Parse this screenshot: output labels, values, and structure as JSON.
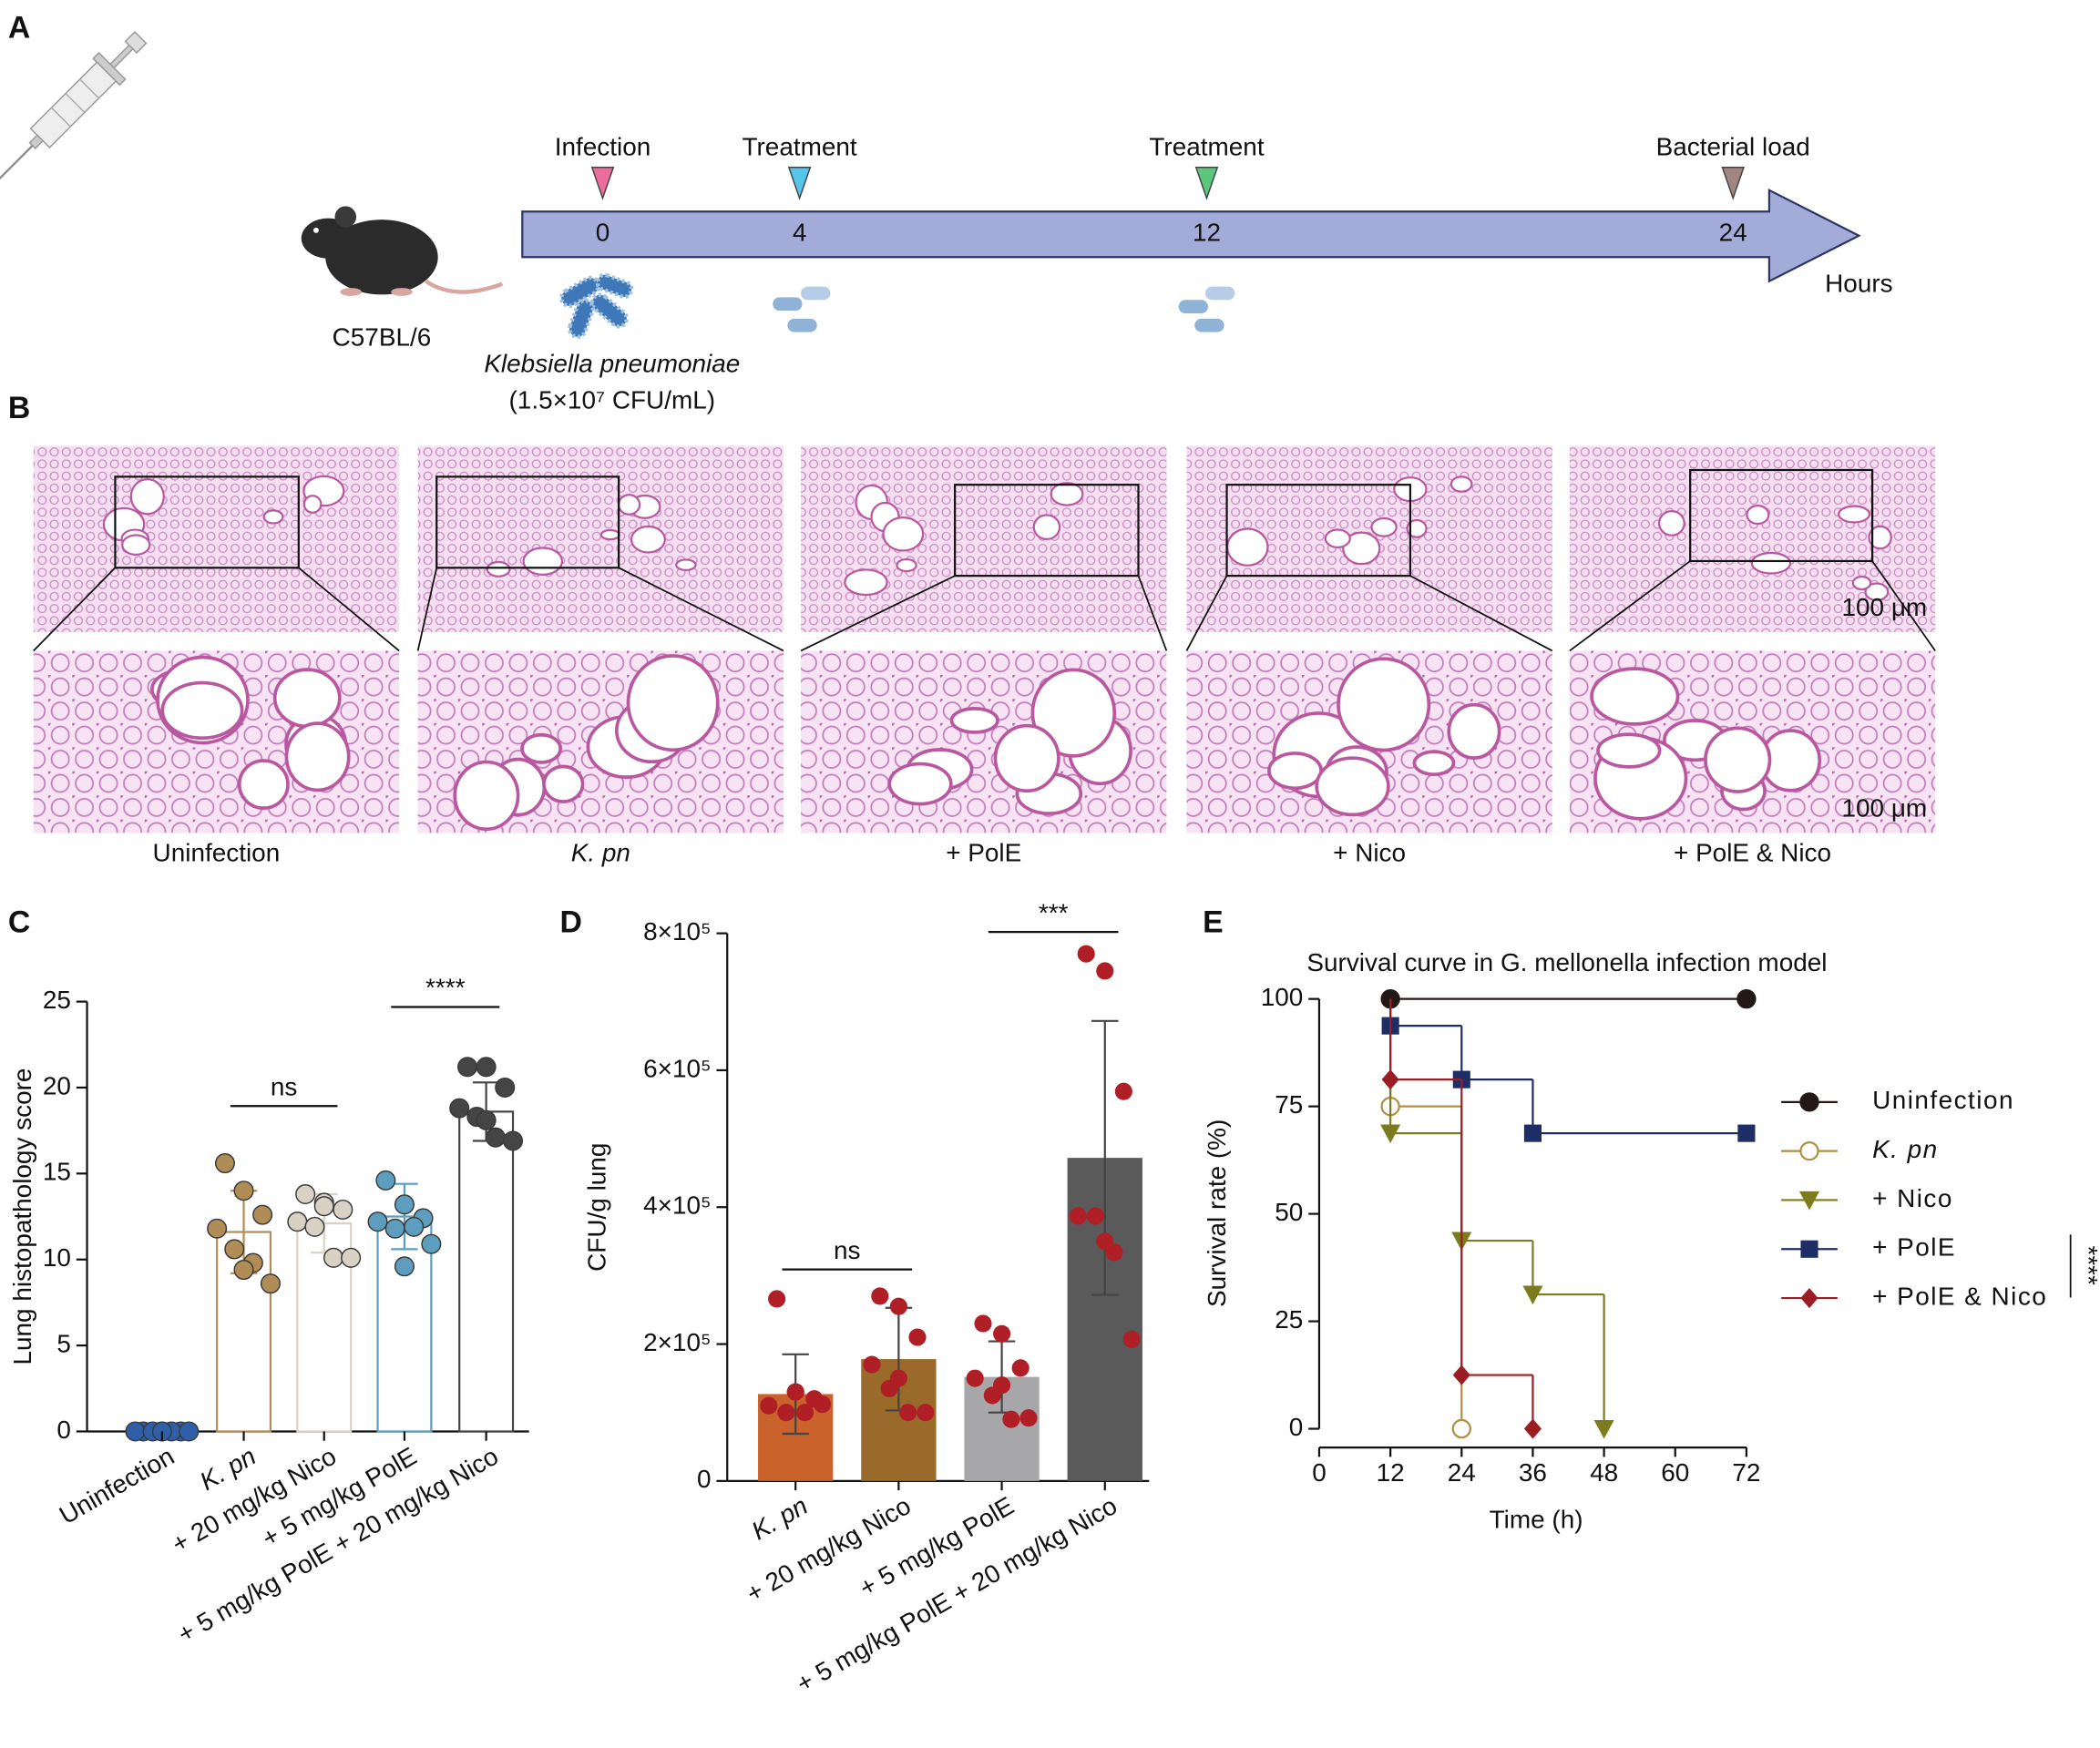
{
  "panel_a": {
    "label": "A",
    "strain": "C57BL/6",
    "organism": "Klebsiella pneumoniae",
    "dose": "(1.5×10⁷ CFU/mL)",
    "unit": "Hours",
    "events": [
      {
        "name": "Infection",
        "time": 0,
        "color": "#ec6c9c"
      },
      {
        "name": "Treatment",
        "time": 4,
        "color": "#56c5ec"
      },
      {
        "name": "Treatment",
        "time": 12,
        "color": "#5cc57e"
      },
      {
        "name": "Bacterial load",
        "time": 24,
        "color": "#a08580"
      }
    ]
  },
  "panel_b": {
    "label": "B",
    "groups": [
      "Uninfection",
      "K. pn",
      "+ PolE",
      "+ Nico",
      "+ PolE & Nico"
    ],
    "scale_bar": "100 μm"
  },
  "chart_data": [
    {
      "label": "C",
      "type": "bar",
      "bar_style": "outline",
      "ylabel": "Lung histopathology score",
      "categories": [
        "Uninfection",
        "K. pn",
        "+ 20 mg/kg Nico",
        "+ 5 mg/kg PolE",
        "+ 5 mg/kg PolE + 20 mg/kg Nico"
      ],
      "colors": [
        "#2f5fa8",
        "#b08d57",
        "#d9d1c4",
        "#5d9dbd",
        "#454545"
      ],
      "values": [
        0,
        11.6,
        12.1,
        12.5,
        18.6
      ],
      "errors": [
        0,
        2.4,
        1.7,
        1.9,
        1.7
      ],
      "points": [
        [
          0,
          0,
          0,
          0,
          0,
          0,
          0,
          0
        ],
        [
          15.6,
          14,
          12.6,
          11.8,
          10.6,
          9.8,
          8.6,
          9.4
        ],
        [
          13.8,
          13.3,
          12.9,
          12.2,
          11.9,
          10.1,
          10.1,
          13.1
        ],
        [
          14.6,
          13.2,
          12.4,
          12.2,
          11.8,
          11.9,
          10.9,
          9.6
        ],
        [
          21.2,
          21.2,
          20.0,
          18.8,
          18.3,
          17.1,
          16.9,
          18.1
        ]
      ],
      "ylim": [
        0,
        25
      ],
      "yticks": [
        0,
        5,
        10,
        15,
        20,
        25
      ],
      "annotations": [
        "ns",
        "****"
      ]
    },
    {
      "label": "D",
      "type": "bar",
      "bar_style": "filled",
      "ylabel": "CFU/g lung",
      "categories": [
        "K. pn",
        "+ 20 mg/kg Nico",
        "+ 5 mg/kg PolE",
        "+ 5 mg/kg PolE + 20 mg/kg Nico"
      ],
      "colors": [
        "#c9622b",
        "#9a6a2a",
        "#a7a7aa",
        "#5a5a5a"
      ],
      "point_color": "#b01e26",
      "values": [
        127000,
        178000,
        152000,
        472000
      ],
      "errors": [
        58000,
        75000,
        52000,
        200000
      ],
      "points": [
        [
          266000,
          130000,
          120000,
          110000,
          100000,
          100000,
          112000,
          130000
        ],
        [
          270000,
          255000,
          210000,
          170000,
          135000,
          100000,
          100000,
          150000
        ],
        [
          230000,
          215000,
          165000,
          150000,
          125000,
          90000,
          92000,
          140000
        ],
        [
          770000,
          745000,
          569000,
          387000,
          387000,
          334000,
          207000,
          350000
        ]
      ],
      "ylim": [
        0,
        800000
      ],
      "yticks": [
        0,
        {
          "value": 200000,
          "label": "2×10⁵"
        },
        {
          "value": 400000,
          "label": "4×10⁵"
        },
        {
          "value": 600000,
          "label": "6×10⁵"
        },
        {
          "value": 800000,
          "label": "8×10⁵"
        }
      ],
      "annotations": [
        "ns",
        "***"
      ]
    },
    {
      "label": "E",
      "type": "line",
      "title": "Survival curve in G. mellonella infection model",
      "xlabel": "Time (h)",
      "ylabel": "Survival rate (%)",
      "xlim": [
        0,
        72
      ],
      "xticks": [
        0,
        12,
        24,
        36,
        48,
        60,
        72
      ],
      "ylim": [
        0,
        100
      ],
      "yticks": [
        0,
        25,
        50,
        75,
        100
      ],
      "series": [
        {
          "name": "Uninfection",
          "color": "#231815",
          "marker": "circle",
          "x": [
            12,
            72
          ],
          "values": [
            100,
            100
          ]
        },
        {
          "name": "K. pn",
          "color": "#b08d40",
          "marker": "open-circle",
          "x": [
            12,
            24
          ],
          "values": [
            75,
            0
          ]
        },
        {
          "name": "+ Nico",
          "color": "#7c7c1f",
          "marker": "triangle-down",
          "x": [
            12,
            24,
            36,
            48
          ],
          "values": [
            68.75,
            43.75,
            31.25,
            0
          ]
        },
        {
          "name": "+ PolE",
          "color": "#1f2d66",
          "marker": "square",
          "x": [
            12,
            24,
            36,
            72
          ],
          "values": [
            93.75,
            81.25,
            68.75,
            68.75
          ]
        },
        {
          "name": "+ PolE & Nico",
          "color": "#9b1c22",
          "marker": "diamond",
          "x": [
            12,
            24,
            36
          ],
          "values": [
            81.25,
            12.5,
            0
          ]
        }
      ],
      "annotations": [
        "****"
      ]
    }
  ]
}
